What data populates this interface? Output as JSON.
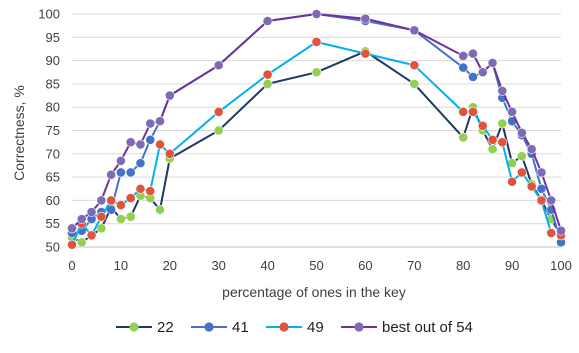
{
  "chart_data": {
    "type": "line",
    "xlabel": "percentage of ones in the key",
    "ylabel": "Correctness, %",
    "xlim": [
      0,
      100
    ],
    "ylim": [
      50,
      100
    ],
    "x_ticks": [
      0,
      10,
      20,
      30,
      40,
      50,
      60,
      70,
      80,
      90,
      100
    ],
    "y_ticks": [
      50,
      55,
      60,
      65,
      70,
      75,
      80,
      85,
      90,
      95,
      100
    ],
    "grid": "horizontal",
    "legend_position": "bottom",
    "series": [
      {
        "name": "22",
        "line_color": "#203864",
        "marker_color": "#92D050",
        "points": [
          [
            0,
            52
          ],
          [
            2,
            51
          ],
          [
            4,
            52.5
          ],
          [
            6,
            54
          ],
          [
            8,
            58.5
          ],
          [
            10,
            56
          ],
          [
            12,
            56.5
          ],
          [
            14,
            61
          ],
          [
            16,
            60.5
          ],
          [
            18,
            58
          ],
          [
            20,
            69
          ],
          [
            30,
            75
          ],
          [
            40,
            85
          ],
          [
            50,
            87.5
          ],
          [
            60,
            92
          ],
          [
            70,
            85
          ],
          [
            80,
            73.5
          ],
          [
            82,
            80
          ],
          [
            84,
            75
          ],
          [
            86,
            71
          ],
          [
            88,
            76.5
          ],
          [
            90,
            68
          ],
          [
            92,
            69.5
          ],
          [
            94,
            63.5
          ],
          [
            96,
            60
          ],
          [
            98,
            56
          ],
          [
            100,
            52.5
          ]
        ]
      },
      {
        "name": "41",
        "line_color": "#4472C4",
        "marker_color": "#4472C4",
        "points": [
          [
            0,
            53
          ],
          [
            2,
            53.5
          ],
          [
            4,
            56
          ],
          [
            6,
            57.5
          ],
          [
            8,
            58
          ],
          [
            10,
            66
          ],
          [
            12,
            66
          ],
          [
            14,
            68
          ],
          [
            16,
            73
          ],
          [
            18,
            77
          ],
          [
            20,
            82.5
          ],
          [
            30,
            89
          ],
          [
            40,
            98.5
          ],
          [
            50,
            100
          ],
          [
            60,
            98.5
          ],
          [
            70,
            96.5
          ],
          [
            80,
            88.5
          ],
          [
            82,
            86.5
          ],
          [
            84,
            87.5
          ],
          [
            86,
            89.5
          ],
          [
            88,
            82
          ],
          [
            90,
            77
          ],
          [
            92,
            74
          ],
          [
            94,
            70
          ],
          [
            96,
            62.5
          ],
          [
            98,
            58
          ],
          [
            100,
            51
          ]
        ]
      },
      {
        "name": "49",
        "line_color": "#00B0F0",
        "marker_color": "#E0533D",
        "points": [
          [
            0,
            50.5
          ],
          [
            2,
            55
          ],
          [
            4,
            52.5
          ],
          [
            6,
            56.5
          ],
          [
            8,
            60
          ],
          [
            10,
            59
          ],
          [
            12,
            60.5
          ],
          [
            14,
            62.5
          ],
          [
            16,
            62
          ],
          [
            18,
            72
          ],
          [
            20,
            70
          ],
          [
            30,
            79
          ],
          [
            40,
            87
          ],
          [
            50,
            94
          ],
          [
            60,
            91.5
          ],
          [
            70,
            89
          ],
          [
            80,
            79
          ],
          [
            82,
            79
          ],
          [
            84,
            76
          ],
          [
            86,
            73
          ],
          [
            88,
            72.5
          ],
          [
            90,
            64
          ],
          [
            92,
            66
          ],
          [
            94,
            63
          ],
          [
            96,
            60
          ],
          [
            98,
            53
          ],
          [
            100,
            52.5
          ]
        ]
      },
      {
        "name": "best out of 54",
        "line_color": "#7030A0",
        "marker_color": "#7F6AB4",
        "points": [
          [
            0,
            54
          ],
          [
            2,
            56
          ],
          [
            4,
            57.5
          ],
          [
            6,
            60
          ],
          [
            8,
            65.5
          ],
          [
            10,
            68.5
          ],
          [
            12,
            72.5
          ],
          [
            14,
            72
          ],
          [
            16,
            76.5
          ],
          [
            18,
            77
          ],
          [
            20,
            82.5
          ],
          [
            30,
            89
          ],
          [
            40,
            98.5
          ],
          [
            50,
            100
          ],
          [
            60,
            99
          ],
          [
            70,
            96.5
          ],
          [
            80,
            91
          ],
          [
            82,
            91.5
          ],
          [
            84,
            87.5
          ],
          [
            86,
            89.5
          ],
          [
            88,
            83.5
          ],
          [
            90,
            79
          ],
          [
            92,
            74.5
          ],
          [
            94,
            71
          ],
          [
            96,
            66
          ],
          [
            98,
            60
          ],
          [
            100,
            53.5
          ]
        ]
      }
    ]
  }
}
